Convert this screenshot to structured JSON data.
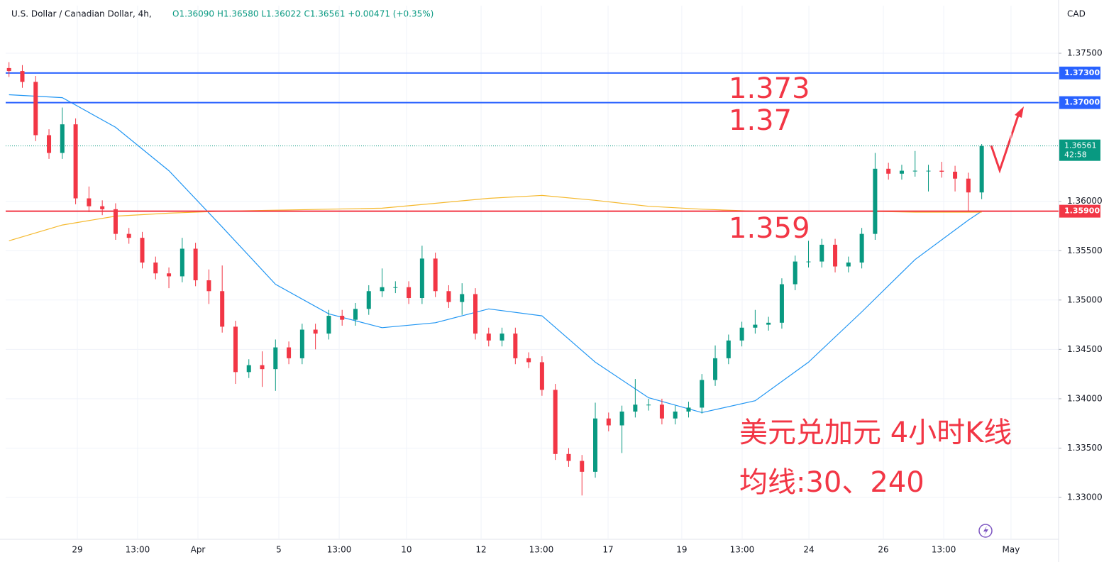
{
  "chart_data": {
    "type": "candlestick",
    "title": "U.S. Dollar / Canadian Dollar, 4h,",
    "legend_text": "O1.36090 H1.36580 L1.36022 C1.36561 +0.00471 (+0.35%)",
    "currency": "CAD",
    "countdown": "42:58",
    "xlim": [
      -0.25,
      78.77
    ],
    "xticks": [
      {
        "value": 5.13,
        "label": "29"
      },
      {
        "value": 9.65,
        "label": "13:00"
      },
      {
        "value": 14.18,
        "label": "Apr"
      },
      {
        "value": 20.25,
        "label": "5"
      },
      {
        "value": 24.78,
        "label": "13:00"
      },
      {
        "value": 29.83,
        "label": "10"
      },
      {
        "value": 35.43,
        "label": "12"
      },
      {
        "value": 39.95,
        "label": "13:00"
      },
      {
        "value": 44.96,
        "label": "17"
      },
      {
        "value": 50.49,
        "label": "19"
      },
      {
        "value": 55.02,
        "label": "13:00"
      },
      {
        "value": 60.03,
        "label": "24"
      },
      {
        "value": 65.62,
        "label": "26"
      },
      {
        "value": 70.15,
        "label": "13:00"
      },
      {
        "value": 75.2,
        "label": "May"
      }
    ],
    "ylim": [
      1.32576,
      1.37982
    ],
    "yticks": [
      {
        "value": 1.375,
        "label": "1.37500"
      },
      {
        "value": 1.36,
        "label": "1.36000"
      },
      {
        "value": 1.355,
        "label": "1.35500"
      },
      {
        "value": 1.35,
        "label": "1.35000"
      },
      {
        "value": 1.345,
        "label": "1.34500"
      },
      {
        "value": 1.34,
        "label": "1.34000"
      },
      {
        "value": 1.335,
        "label": "1.33500"
      },
      {
        "value": 1.33,
        "label": "1.33000"
      }
    ],
    "candles": {
      "up_color": "#089981",
      "down_color": "#f23645",
      "open": [
        1.3735,
        1.3732,
        1.3721,
        1.3667,
        1.3649,
        1.3678,
        1.3603,
        1.3595,
        1.3592,
        1.3567,
        1.3563,
        1.3538,
        1.3527,
        1.3524,
        1.3552,
        1.352,
        1.3509,
        1.3473,
        1.3427,
        1.3434,
        1.343,
        1.3452,
        1.3441,
        1.347,
        1.3466,
        1.3484,
        1.348,
        1.3491,
        1.3509,
        1.3513,
        1.3513,
        1.3502,
        1.3542,
        1.3509,
        1.3498,
        1.3506,
        1.3466,
        1.3459,
        1.3466,
        1.3441,
        1.3437,
        1.3409,
        1.3344,
        1.3337,
        1.3326,
        1.338,
        1.3373,
        1.3387,
        1.3394,
        1.3394,
        1.338,
        1.3387,
        1.3391,
        1.3419,
        1.3441,
        1.3459,
        1.3472,
        1.3475,
        1.3477,
        1.3516,
        1.3539,
        1.3539,
        1.3556,
        1.3534,
        1.3538,
        1.3567,
        1.3633,
        1.3628,
        1.3631,
        1.3631,
        1.3631,
        1.363,
        1.3623,
        1.3609
      ],
      "high": [
        1.3741,
        1.3738,
        1.3727,
        1.3673,
        1.3695,
        1.3684,
        1.3615,
        1.3601,
        1.3598,
        1.3573,
        1.3569,
        1.3544,
        1.3533,
        1.3563,
        1.3558,
        1.3531,
        1.3535,
        1.3479,
        1.344,
        1.3448,
        1.346,
        1.3458,
        1.3476,
        1.3476,
        1.349,
        1.349,
        1.3497,
        1.3515,
        1.3532,
        1.3519,
        1.3519,
        1.3555,
        1.3548,
        1.3515,
        1.3517,
        1.3512,
        1.3472,
        1.3472,
        1.3472,
        1.3447,
        1.3443,
        1.3415,
        1.335,
        1.3343,
        1.3396,
        1.3386,
        1.3393,
        1.342,
        1.34,
        1.34,
        1.3393,
        1.3397,
        1.3425,
        1.3454,
        1.3465,
        1.3478,
        1.349,
        1.3483,
        1.3522,
        1.3545,
        1.356,
        1.3562,
        1.3562,
        1.3544,
        1.3573,
        1.3649,
        1.3639,
        1.3637,
        1.3651,
        1.3637,
        1.364,
        1.3636,
        1.3629,
        1.3658
      ],
      "low": [
        1.3726,
        1.3715,
        1.3661,
        1.3643,
        1.3643,
        1.3597,
        1.3589,
        1.3586,
        1.3561,
        1.3557,
        1.3532,
        1.3521,
        1.3512,
        1.3518,
        1.3514,
        1.3496,
        1.3467,
        1.3415,
        1.3421,
        1.3412,
        1.3408,
        1.3435,
        1.3435,
        1.345,
        1.346,
        1.3474,
        1.3474,
        1.3485,
        1.3503,
        1.3507,
        1.3496,
        1.3496,
        1.3503,
        1.3492,
        1.3485,
        1.346,
        1.3453,
        1.3453,
        1.3435,
        1.3431,
        1.3403,
        1.3338,
        1.3331,
        1.3302,
        1.332,
        1.3367,
        1.3345,
        1.3381,
        1.3388,
        1.3374,
        1.3374,
        1.3381,
        1.3385,
        1.3413,
        1.3435,
        1.3453,
        1.3466,
        1.3469,
        1.3471,
        1.351,
        1.3533,
        1.3533,
        1.3528,
        1.3528,
        1.3532,
        1.3561,
        1.3622,
        1.3622,
        1.3625,
        1.361,
        1.3624,
        1.361,
        1.359,
        1.36022
      ],
      "close": [
        1.3732,
        1.3721,
        1.3667,
        1.3649,
        1.3678,
        1.3603,
        1.3595,
        1.3592,
        1.3567,
        1.3563,
        1.3538,
        1.3527,
        1.3524,
        1.3552,
        1.352,
        1.3509,
        1.3473,
        1.3427,
        1.3434,
        1.343,
        1.3452,
        1.3441,
        1.347,
        1.3466,
        1.3484,
        1.348,
        1.3491,
        1.3509,
        1.3513,
        1.3513,
        1.3502,
        1.3542,
        1.3509,
        1.3498,
        1.3506,
        1.3466,
        1.3459,
        1.3466,
        1.3441,
        1.3437,
        1.3409,
        1.3344,
        1.3337,
        1.3326,
        1.338,
        1.3373,
        1.3387,
        1.3394,
        1.3394,
        1.338,
        1.3387,
        1.3391,
        1.3419,
        1.3441,
        1.3459,
        1.3472,
        1.3475,
        1.3477,
        1.3516,
        1.3539,
        1.3539,
        1.3556,
        1.3534,
        1.3538,
        1.3567,
        1.3633,
        1.3628,
        1.3631,
        1.3631,
        1.3631,
        1.363,
        1.3623,
        1.3609,
        1.36561
      ]
    },
    "moving_averages": [
      {
        "color": "#2196f3",
        "x": [
          0,
          4,
          8,
          12,
          16,
          20,
          24,
          28,
          32,
          36,
          40,
          44,
          48,
          52,
          56,
          60,
          64,
          68,
          72,
          73
        ],
        "values": [
          1.3708,
          1.3705,
          1.3675,
          1.3631,
          1.3574,
          1.3516,
          1.3486,
          1.3472,
          1.3477,
          1.3491,
          1.3484,
          1.3437,
          1.3401,
          1.3386,
          1.3398,
          1.3437,
          1.3488,
          1.3541,
          1.3581,
          1.359
        ]
      },
      {
        "color": "#f5b92e",
        "x": [
          0,
          4,
          8,
          12,
          16,
          20,
          24,
          28,
          32,
          36,
          40,
          44,
          48,
          52,
          56,
          60,
          64,
          68,
          72,
          73
        ],
        "values": [
          1.356,
          1.3576,
          1.3585,
          1.3588,
          1.359,
          1.3591,
          1.3592,
          1.3593,
          1.3598,
          1.3603,
          1.3606,
          1.3601,
          1.3595,
          1.3592,
          1.359,
          1.359,
          1.359,
          1.3589,
          1.3589,
          1.3589
        ]
      }
    ],
    "hlines": [
      {
        "value": 1.373,
        "label": "1.37300",
        "color": "#2962ff"
      },
      {
        "value": 1.37,
        "label": "1.37000",
        "color": "#2962ff"
      },
      {
        "value": 1.359,
        "label": "1.35900",
        "color": "#f23645"
      }
    ],
    "last_price": {
      "value": 1.36561,
      "label": "1.36561",
      "color": "#089981"
    },
    "annotations": [
      "1.373",
      "1.37",
      "1.359",
      "美元兑加元 4小时K线",
      "均线:30、240"
    ]
  }
}
